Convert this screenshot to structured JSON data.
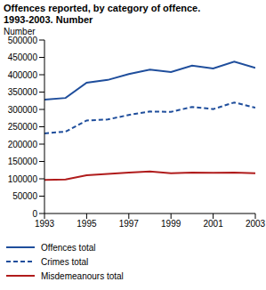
{
  "chart_data": {
    "type": "line",
    "title": "Offences reported, by category of offence.",
    "subtitle": "1993-2003. Number",
    "y_label": "Number",
    "x": [
      1993,
      1994,
      1995,
      1996,
      1997,
      1998,
      1999,
      2000,
      2001,
      2002,
      2003
    ],
    "series": [
      {
        "name": "Offences total",
        "color": "#1f4e9c",
        "line_style": "solid",
        "values": [
          328000,
          333000,
          377000,
          385000,
          402000,
          415000,
          408000,
          426000,
          418000,
          438000,
          420000
        ]
      },
      {
        "name": "Crimes total",
        "color": "#1f4e9c",
        "line_style": "dashed",
        "values": [
          231000,
          236000,
          268000,
          271000,
          284000,
          294000,
          293000,
          307000,
          301000,
          320000,
          305000
        ]
      },
      {
        "name": "Misdemeanours total",
        "color": "#b01c1c",
        "line_style": "solid",
        "values": [
          97000,
          98000,
          110000,
          114000,
          118000,
          121000,
          116000,
          118000,
          117000,
          118000,
          116000
        ]
      }
    ],
    "xlim": [
      1993,
      2003
    ],
    "xticks": [
      1993,
      1995,
      1997,
      1999,
      2001,
      2003
    ],
    "ylim": [
      0,
      500000
    ],
    "yticks": [
      0,
      50000,
      100000,
      150000,
      200000,
      250000,
      300000,
      350000,
      400000,
      450000,
      500000
    ],
    "grid": false
  }
}
